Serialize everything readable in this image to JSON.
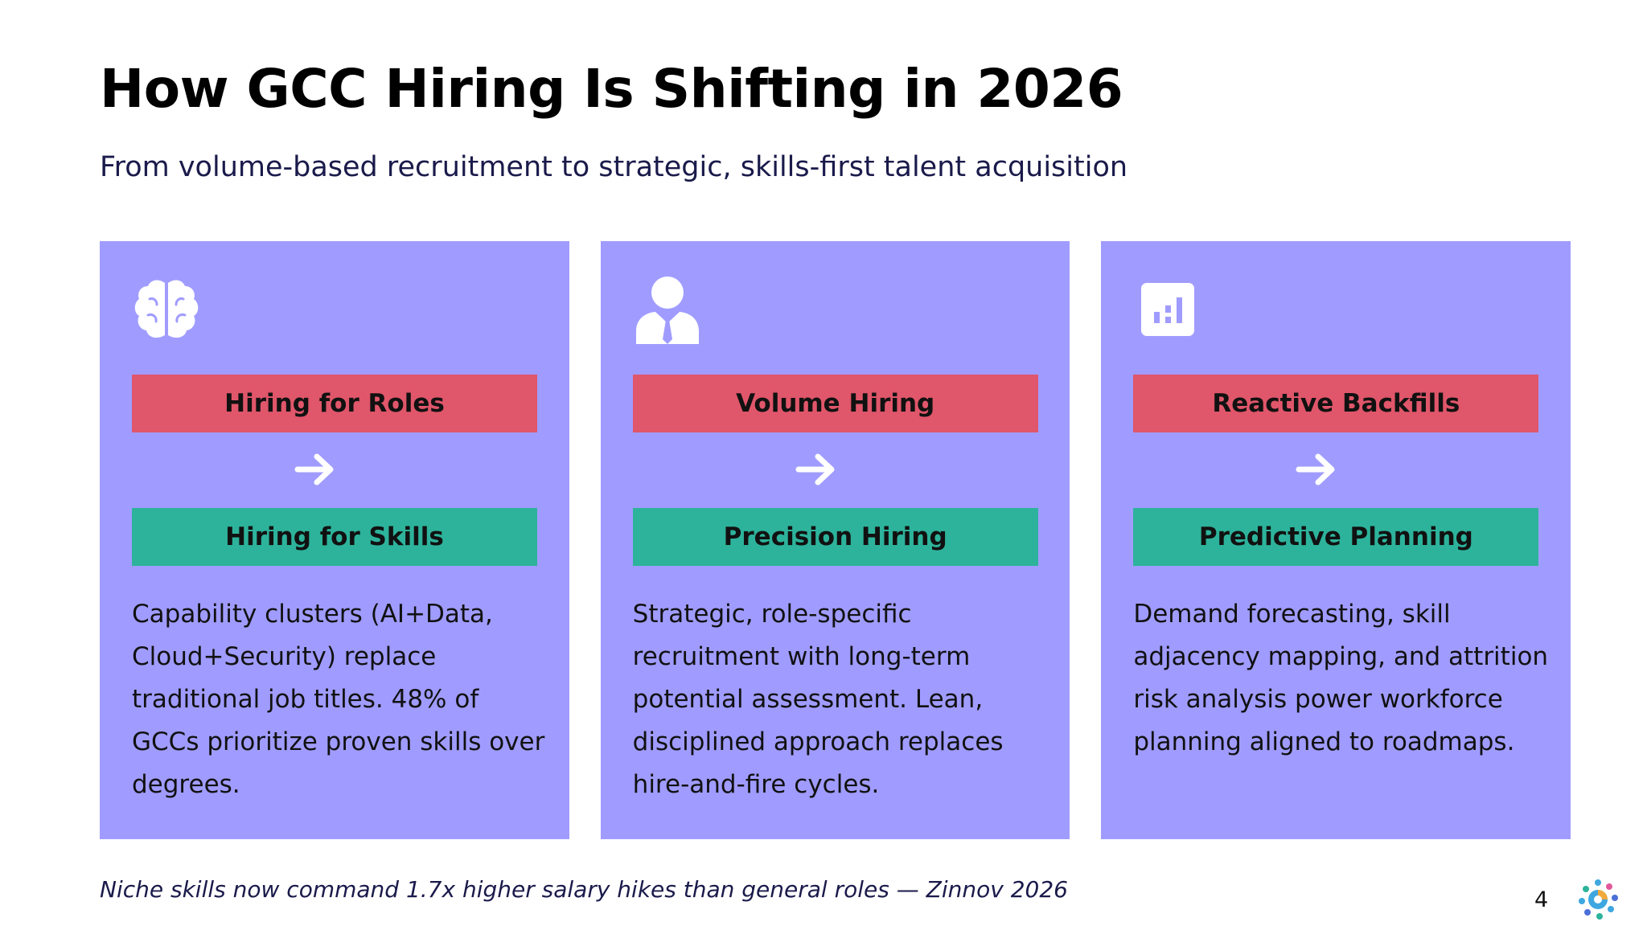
{
  "slide": {
    "title": "How GCC Hiring Is Shifting in 2026",
    "subtitle": "From volume-based recruitment to strategic, skills-first talent acquisition",
    "footnote": "Niche skills now command 1.7x higher salary hikes than general roles — Zinnov 2026",
    "page_number": "4"
  },
  "colors": {
    "card_background": "#a09cff",
    "from_box": "#e0566a",
    "to_box": "#2db39b",
    "subtitle_text": "#1a1a4b"
  },
  "cards": [
    {
      "icon": "brain-icon",
      "from": "Hiring for Roles",
      "to": "Hiring for Skills",
      "description": "Capability clusters (AI+Data, Cloud+Security) replace traditional job titles. 48% of GCCs prioritize proven skills over degrees."
    },
    {
      "icon": "user-tie-icon",
      "from": "Volume Hiring",
      "to": "Precision Hiring",
      "description": "Strategic, role-specific recruitment with long-term potential assessment. Lean, disciplined approach replaces hire-and-fire cycles."
    },
    {
      "icon": "bar-chart-icon",
      "from": "Reactive Backfills",
      "to": "Predictive Planning",
      "description": "Demand forecasting, skill adjacency mapping, and attrition risk analysis power workforce planning aligned to roadmaps."
    }
  ]
}
